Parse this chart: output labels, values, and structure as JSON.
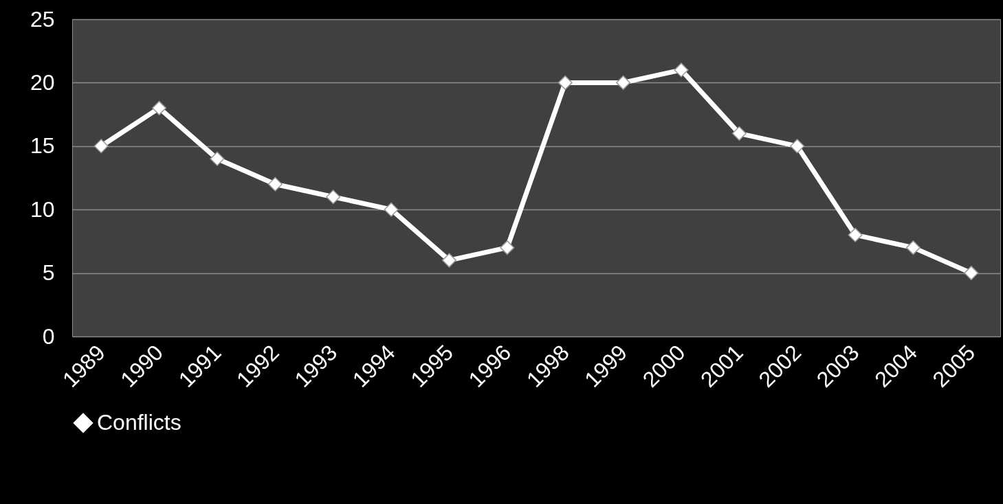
{
  "chart_data": {
    "type": "line",
    "categories": [
      "1989",
      "1990",
      "1991",
      "1992",
      "1993",
      "1994",
      "1995",
      "1996",
      "1998",
      "1999",
      "2000",
      "2001",
      "2002",
      "2003",
      "2004",
      "2005"
    ],
    "series": [
      {
        "name": "Conflicts",
        "color": "#ffffff",
        "values": [
          15,
          18,
          14,
          12,
          11,
          10,
          6,
          7,
          20,
          20,
          21,
          16,
          15,
          8,
          7,
          5
        ]
      }
    ],
    "ylim": [
      0,
      25
    ],
    "yticks": [
      0,
      5,
      10,
      15,
      20,
      25
    ],
    "grid": "y",
    "legend": "bottom",
    "marker": "diamond",
    "line_style": "solid"
  }
}
